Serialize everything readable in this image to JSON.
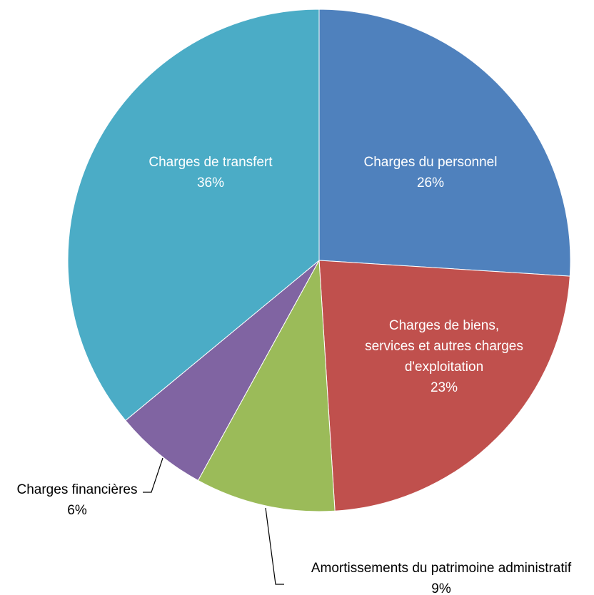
{
  "chart_data": {
    "type": "pie",
    "title": "",
    "slices": [
      {
        "label": [
          "Charges du personnel"
        ],
        "value": 26,
        "value_label": "26%",
        "color": "#4f81bd"
      },
      {
        "label": [
          "Charges de biens,",
          "services et autres charges",
          "d'exploitation"
        ],
        "value": 23,
        "value_label": "23%",
        "color": "#c0504d"
      },
      {
        "label": [
          "Amortissements du patrimoine administratif"
        ],
        "value": 9,
        "value_label": "9%",
        "color": "#9bbb59"
      },
      {
        "label": [
          "Charges financières"
        ],
        "value": 6,
        "value_label": "6%",
        "color": "#8064a2"
      },
      {
        "label": [
          "Charges de transfert"
        ],
        "value": 36,
        "value_label": "36%",
        "color": "#4bacc6"
      }
    ]
  }
}
